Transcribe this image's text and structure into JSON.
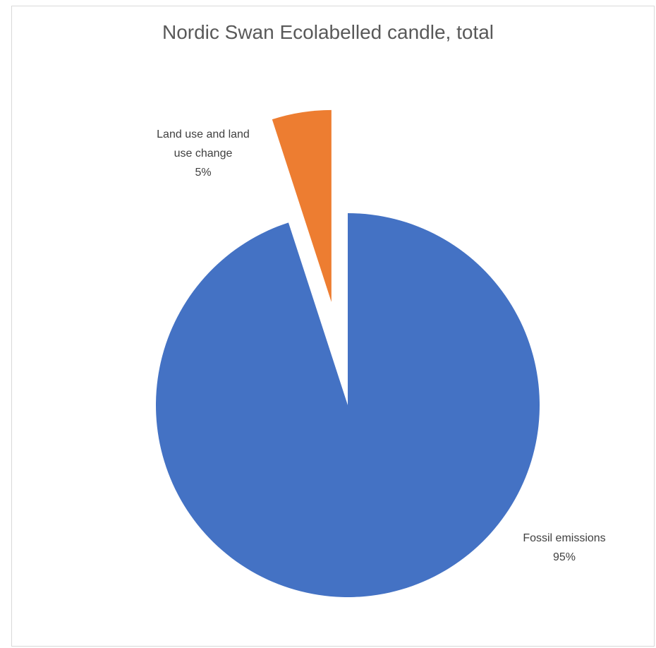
{
  "chart_data": {
    "type": "pie",
    "title": "Nordic Swan Ecolabelled candle, total",
    "start_angle_deg": 0,
    "slices": [
      {
        "name": "Fossil emissions",
        "label_lines": [
          "Fossil emissions"
        ],
        "value": 95,
        "percent_label": "95%",
        "color": "#4472c4",
        "exploded": false
      },
      {
        "name": "Land use and land use change",
        "label_lines": [
          "Land use and land",
          "use change"
        ],
        "value": 5,
        "percent_label": "5%",
        "color": "#ed7d31",
        "exploded": true
      }
    ],
    "legend": "none"
  }
}
